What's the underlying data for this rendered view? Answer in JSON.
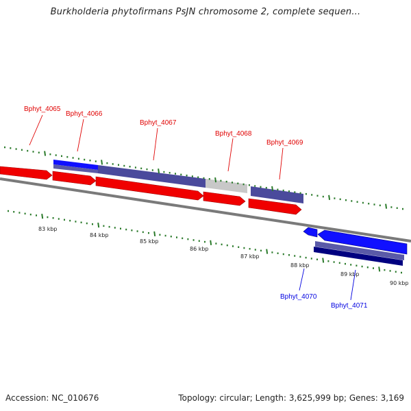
{
  "title": "Burkholderia phytofirmans PsJN chromosome 2, complete sequen...",
  "footer": {
    "accession": "Accession: NC_010676",
    "summary": "Topology: circular; Length: 3,625,999 bp; Genes: 3,169"
  },
  "colors": {
    "forward_gene": "#ff0000",
    "reverse_gene": "#0000ff",
    "feature_purple": "#4a4a9c",
    "feature_gray": "#c8c8c8",
    "backbone": "#808080",
    "tick": "#2a7a2a"
  },
  "scale_labels": [
    "83 kbp",
    "84 kbp",
    "85 kbp",
    "86 kbp",
    "87 kbp",
    "88 kbp",
    "89 kbp",
    "90 kbp"
  ],
  "genes_forward": [
    "Bphyt_4065",
    "Bphyt_4066",
    "Bphyt_4067",
    "Bphyt_4068",
    "Bphyt_4069"
  ],
  "genes_reverse": [
    "Bphyt_4070",
    "Bphyt_4071"
  ]
}
